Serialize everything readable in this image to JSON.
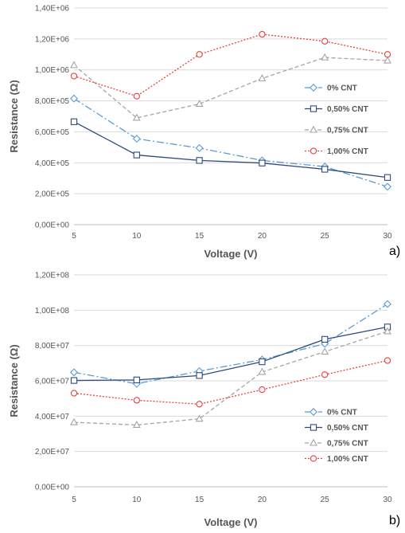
{
  "chart_data": [
    {
      "type": "line",
      "panel_label": "a)",
      "xlabel": "Voltage (V)",
      "ylabel": "Resistance (Ω)",
      "x": [
        5,
        10,
        15,
        20,
        25,
        30
      ],
      "x_tick_labels": [
        "5",
        "10",
        "15",
        "20",
        "25",
        "30"
      ],
      "ylim": [
        0,
        1400000
      ],
      "y_ticks": [
        0,
        200000,
        400000,
        600000,
        800000,
        1000000,
        1200000,
        1400000
      ],
      "y_tick_labels": [
        "0,00E+00",
        "2,00E+05",
        "4,00E+05",
        "6,00E+05",
        "8,00E+05",
        "1,00E+06",
        "1,20E+06",
        "1,40E+06"
      ],
      "grid": "horizontal",
      "legend_position": "right",
      "series": [
        {
          "name": "0% CNT",
          "color": "#5b9bd5",
          "marker": "diamond",
          "dash": "9,3,2,3",
          "values": [
            815000,
            555000,
            495000,
            415000,
            375000,
            245000
          ]
        },
        {
          "name": "0,50% CNT",
          "color": "#2e4a7c",
          "marker": "square",
          "dash": "",
          "values": [
            665000,
            450000,
            415000,
            398000,
            358000,
            305000
          ]
        },
        {
          "name": "0,75% CNT",
          "color": "#a5a5a5",
          "marker": "triangle",
          "dash": "5,3",
          "values": [
            1030000,
            690000,
            780000,
            945000,
            1080000,
            1060000
          ]
        },
        {
          "name": "1,00% CNT",
          "color": "#e8413c",
          "marker": "circle",
          "dash": "2,2",
          "values": [
            960000,
            830000,
            1100000,
            1230000,
            1185000,
            1100000
          ]
        }
      ]
    },
    {
      "type": "line",
      "panel_label": "b)",
      "xlabel": "Voltage (V)",
      "ylabel": "Resistance (Ω)",
      "x": [
        5,
        10,
        15,
        20,
        25,
        30
      ],
      "x_tick_labels": [
        "5",
        "10",
        "15",
        "20",
        "25",
        "30"
      ],
      "ylim": [
        0,
        120000000
      ],
      "y_ticks": [
        0,
        20000000,
        40000000,
        60000000,
        80000000,
        100000000,
        120000000
      ],
      "y_tick_labels": [
        "0,00E+00",
        "2,00E+07",
        "4,00E+07",
        "6,00E+07",
        "8,00E+07",
        "1,00E+08",
        "1,20E+08"
      ],
      "grid": "horizontal",
      "legend_position": "bottom-right",
      "series": [
        {
          "name": "0% CNT",
          "color": "#5b9bd5",
          "marker": "diamond",
          "dash": "9,3,2,3",
          "values": [
            64800000,
            58300000,
            65500000,
            72000000,
            81000000,
            103500000
          ]
        },
        {
          "name": "0,50% CNT",
          "color": "#2e4a7c",
          "marker": "square",
          "dash": "",
          "values": [
            60200000,
            60500000,
            63000000,
            70800000,
            83500000,
            90500000
          ]
        },
        {
          "name": "0,75% CNT",
          "color": "#a5a5a5",
          "marker": "triangle",
          "dash": "5,3",
          "values": [
            36500000,
            35000000,
            38500000,
            65000000,
            76500000,
            88000000
          ]
        },
        {
          "name": "1,00% CNT",
          "color": "#e8413c",
          "marker": "circle",
          "dash": "2,2",
          "values": [
            53000000,
            49000000,
            46800000,
            55000000,
            63500000,
            71500000
          ]
        }
      ]
    }
  ]
}
